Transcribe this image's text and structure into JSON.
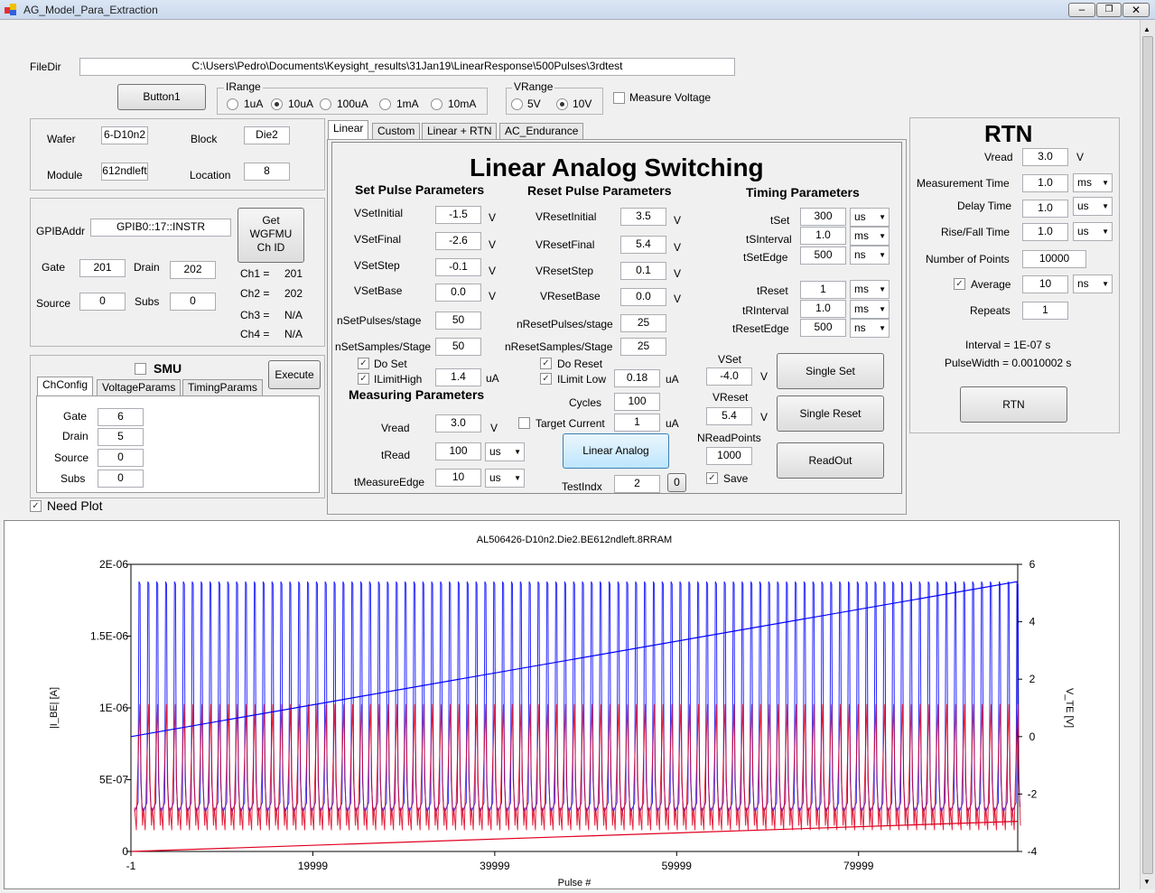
{
  "window": {
    "title": "AG_Model_Para_Extraction"
  },
  "filedir": {
    "label": "FileDir",
    "value": "C:\\Users\\Pedro\\Documents\\Keysight_results\\31Jan19\\LinearResponse\\500Pulses\\3rdtest"
  },
  "button1": "Button1",
  "irange": {
    "label": "IRange",
    "options": [
      "1uA",
      "10uA",
      "100uA",
      "1mA",
      "10mA"
    ],
    "selected": "10uA"
  },
  "vrange": {
    "label": "VRange",
    "options": [
      "5V",
      "10V"
    ],
    "selected": "10V"
  },
  "measure_voltage": "Measure Voltage",
  "wafer_group": {
    "wafer_label": "Wafer",
    "wafer": "6-D10n2",
    "block_label": "Block",
    "block": "Die2",
    "module_label": "Module",
    "module": "612ndleft",
    "location_label": "Location",
    "location": "8"
  },
  "gpib": {
    "addr_label": "GPIBAddr",
    "addr": "GPIB0::17::INSTR",
    "get_btn": "Get WGFMU Ch ID",
    "gate_label": "Gate",
    "gate": "201",
    "drain_label": "Drain",
    "drain": "202",
    "source_label": "Source",
    "source": "0",
    "subs_label": "Subs",
    "subs": "0",
    "ch1_label": "Ch1 =",
    "ch1": "201",
    "ch2_label": "Ch2 =",
    "ch2": "202",
    "ch3_label": "Ch3 =",
    "ch3": "N/A",
    "ch4_label": "Ch4 =",
    "ch4": "N/A"
  },
  "smu": {
    "label": "SMU",
    "execute": "Execute",
    "tabs": [
      "ChConfig",
      "VoltageParams",
      "TimingParams"
    ],
    "gate_label": "Gate",
    "gate": "6",
    "drain_label": "Drain",
    "drain": "5",
    "source_label": "Source",
    "source": "0",
    "subs_label": "Subs",
    "subs": "0"
  },
  "need_plot": "Need Plot",
  "tabs": [
    "Linear",
    "Custom",
    "Linear + RTN",
    "AC_Endurance"
  ],
  "linear": {
    "title": "Linear Analog Switching",
    "set_title": "Set Pulse Parameters",
    "reset_title": "Reset Pulse Parameters",
    "timing_title": "Timing Parameters",
    "measuring_title": "Measuring Parameters",
    "v": "V",
    "ua": "uA",
    "vset_initial_label": "VSetInitial",
    "vset_initial": "-1.5",
    "vset_final_label": "VSetFinal",
    "vset_final": "-2.6",
    "vset_step_label": "VSetStep",
    "vset_step": "-0.1",
    "vset_base_label": "VSetBase",
    "vset_base": "0.0",
    "nset_pulses_label": "nSetPulses/stage",
    "nset_pulses": "50",
    "nset_samples_label": "nSetSamples/Stage",
    "nset_samples": "50",
    "do_set": "Do Set",
    "ilimit_high_label": "ILimitHigh",
    "ilimit_high": "1.4",
    "vreset_initial_label": "VResetInitial",
    "vreset_initial": "3.5",
    "vreset_final_label": "VResetFinal",
    "vreset_final": "5.4",
    "vreset_step_label": "VResetStep",
    "vreset_step": "0.1",
    "vreset_base_label": "VResetBase",
    "vreset_base": "0.0",
    "nreset_pulses_label": "nResetPulses/stage",
    "nreset_pulses": "25",
    "nreset_samples_label": "nResetSamples/Stage",
    "nreset_samples": "25",
    "do_reset": "Do Reset",
    "ilimit_low_label": "ILimit Low",
    "ilimit_low": "0.18",
    "tset_label": "tSet",
    "tset": "300",
    "tset_unit": "us",
    "tsinterval_label": "tSInterval",
    "tsinterval": "1.0",
    "tsinterval_unit": "ms",
    "tsetedge_label": "tSetEdge",
    "tsetedge": "500",
    "tsetedge_unit": "ns",
    "treset_label": "tReset",
    "treset": "1",
    "treset_unit": "ms",
    "trinterval_label": "tRInterval",
    "trinterval": "1.0",
    "trinterval_unit": "ms",
    "tresetedge_label": "tResetEdge",
    "tresetedge": "500",
    "tresetedge_unit": "ns",
    "vread_label": "Vread",
    "vread": "3.0",
    "tread_label": "tRead",
    "tread": "100",
    "tread_unit": "us",
    "tmeasure_label": "tMeasureEdge",
    "tmeasure": "10",
    "tmeasure_unit": "us",
    "cycles_label": "Cycles",
    "cycles": "100",
    "target_current": "Target Current",
    "target_current_value": "1",
    "linear_analog_btn": "Linear Analog",
    "testindx_label": "TestIndx",
    "testindx": "2",
    "testindx_btn": "0",
    "vset_label": "VSet",
    "vset": "-4.0",
    "vreset_label": "VReset",
    "vreset": "5.4",
    "nread_label": "NReadPoints",
    "nread": "1000",
    "save": "Save",
    "single_set": "Single Set",
    "single_reset": "Single Reset",
    "readout": "ReadOut"
  },
  "rtn": {
    "title": "RTN",
    "vread_label": "Vread",
    "vread": "3.0",
    "vread_unit": "V",
    "mt_label": "Measurement Time",
    "mt": "1.0",
    "mt_unit": "ms",
    "dt_label": "Delay Time",
    "dt": "1.0",
    "dt_unit": "us",
    "rf_label": "Rise/Fall Time",
    "rf": "1.0",
    "rf_unit": "us",
    "np_label": "Number of Points",
    "np": "10000",
    "avg_label": "Average",
    "avg": "10",
    "avg_unit": "ns",
    "rep_label": "Repeats",
    "rep": "1",
    "interval": "Interval = 1E-07 s",
    "pulsewidth": "PulseWidth = 0.0010002 s",
    "btn": "RTN"
  },
  "colors": {
    "accent_blue": "#0000ff",
    "accent_red": "#e00020"
  },
  "chart_data": {
    "type": "line",
    "title": "AL506426-D10n2.Die2.BE612ndleft.8RRAM",
    "xlabel": "Pulse #",
    "ylabel": "|I_BE| [A]",
    "y2label": "V_TE [V]",
    "xlim": [
      -1,
      97500
    ],
    "ylim": [
      0,
      2e-06
    ],
    "y2lim": [
      -4,
      6
    ],
    "xticks": [
      "-1",
      "19999",
      "39999",
      "59999",
      "79999"
    ],
    "xtick_values": [
      -1,
      19999,
      39999,
      59999,
      79999
    ],
    "yticks": [
      "0",
      "5E-07",
      "1E-06",
      "1.5E-06",
      "2E-06"
    ],
    "ytick_values": [
      0,
      5e-07,
      1e-06,
      1.5e-06,
      2e-06
    ],
    "y2ticks": [
      "-4",
      "-2",
      "0",
      "2",
      "4",
      "6"
    ],
    "y2tick_values": [
      -4,
      -2,
      0,
      2,
      4,
      6
    ],
    "pulse_cycles": 100,
    "series": [
      {
        "axis": "left",
        "color": "#0000ff",
        "x": [
          0,
          97500
        ],
        "y": [
          8e-07,
          1.88e-06
        ]
      },
      {
        "axis": "left",
        "color": "#e00020",
        "x": [
          0,
          97500
        ],
        "y": [
          0,
          2.1e-07
        ]
      },
      {
        "axis": "right",
        "color": "#0000ff",
        "y_peak": 5.4,
        "y_low": -2.3
      },
      {
        "axis": "right",
        "color": "#e00020",
        "y_peak": 0.5,
        "y_low": -3.1
      }
    ]
  }
}
